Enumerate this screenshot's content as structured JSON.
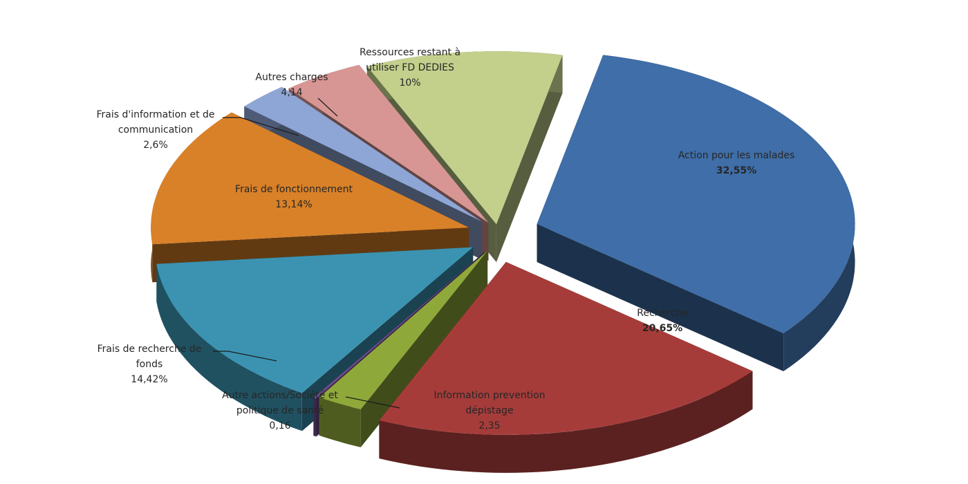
{
  "chart_data": {
    "type": "pie",
    "title": "",
    "units": "%",
    "slices": [
      {
        "label": [
          "Action pour les malades"
        ],
        "value_text": "32,55%",
        "value": 32.55,
        "color": "#3f6ea8"
      },
      {
        "label": [
          "Recherche"
        ],
        "value_text": "20,65%",
        "value": 20.65,
        "color": "#a63c3a"
      },
      {
        "label": [
          "Information prevention",
          "dépistage"
        ],
        "value_text": "2,35",
        "value": 2.35,
        "color": "#8fa83a"
      },
      {
        "label": [
          "Autre actions/Société et",
          "politique de santé"
        ],
        "value_text": "0,16",
        "value": 0.16,
        "color": "#6a4a8c"
      },
      {
        "label": [
          "Frais de recherche de",
          "fonds"
        ],
        "value_text": "14,42%",
        "value": 14.42,
        "color": "#3b93b1"
      },
      {
        "label": [
          "Frais de fonctionnement"
        ],
        "value_text": "13,14%",
        "value": 13.14,
        "color": "#d98128"
      },
      {
        "label": [
          "Frais d'information et de",
          "communication"
        ],
        "value_text": "2,6%",
        "value": 2.6,
        "color": "#8ea6d6"
      },
      {
        "label": [
          "Autres charges"
        ],
        "value_text": "4,14",
        "value": 4.14,
        "color": "#d79694"
      },
      {
        "label": [
          "Ressources restant à",
          "utiliser FD DEDIES"
        ],
        "value_text": "10%",
        "value": 10,
        "color": "#c2d08c"
      }
    ]
  }
}
